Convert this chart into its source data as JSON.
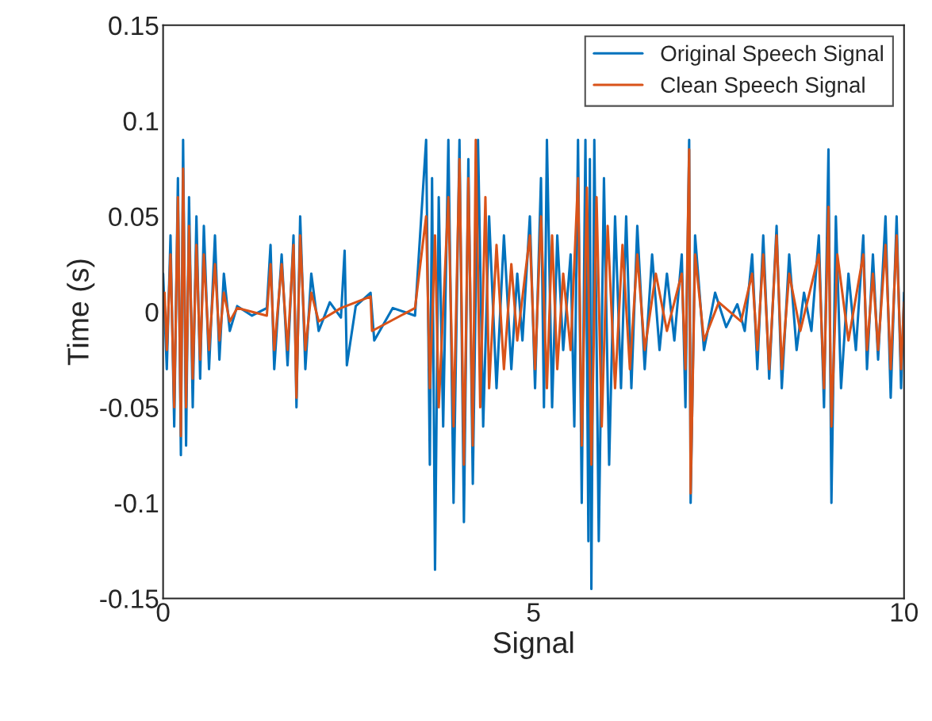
{
  "chart_data": {
    "type": "line",
    "xlabel": "Signal",
    "ylabel": "Time (s)",
    "xlim": [
      0,
      10
    ],
    "ylim": [
      -0.15,
      0.15
    ],
    "xticks": [
      0,
      5,
      10
    ],
    "yticks": [
      -0.15,
      -0.1,
      -0.05,
      0,
      0.05,
      0.1,
      0.15
    ],
    "grid": false,
    "legend": "top right",
    "line_style": "solid",
    "marker": "none",
    "series": [
      {
        "name": "Original Speech Signal",
        "color": "#0072bd",
        "x": [
          0.0,
          0.05,
          0.1,
          0.15,
          0.2,
          0.24,
          0.27,
          0.31,
          0.35,
          0.4,
          0.45,
          0.5,
          0.55,
          0.62,
          0.7,
          0.76,
          0.82,
          0.9,
          1.0,
          1.2,
          1.4,
          1.45,
          1.5,
          1.6,
          1.68,
          1.76,
          1.8,
          1.85,
          1.92,
          2.0,
          2.1,
          2.25,
          2.4,
          2.45,
          2.48,
          2.6,
          2.8,
          2.85,
          3.1,
          3.4,
          3.55,
          3.6,
          3.63,
          3.67,
          3.72,
          3.78,
          3.85,
          3.92,
          4.0,
          4.06,
          4.12,
          4.18,
          4.25,
          4.32,
          4.4,
          4.5,
          4.6,
          4.7,
          4.78,
          4.85,
          4.95,
          5.02,
          5.1,
          5.14,
          5.18,
          5.25,
          5.32,
          5.4,
          5.5,
          5.55,
          5.6,
          5.65,
          5.7,
          5.74,
          5.76,
          5.78,
          5.82,
          5.88,
          5.95,
          6.02,
          6.1,
          6.18,
          6.25,
          6.32,
          6.4,
          6.5,
          6.6,
          6.7,
          6.8,
          6.9,
          7.0,
          7.05,
          7.1,
          7.12,
          7.18,
          7.3,
          7.45,
          7.6,
          7.75,
          7.85,
          7.95,
          8.02,
          8.1,
          8.18,
          8.28,
          8.35,
          8.45,
          8.55,
          8.65,
          8.75,
          8.85,
          8.92,
          8.98,
          9.02,
          9.08,
          9.15,
          9.25,
          9.35,
          9.45,
          9.5,
          9.58,
          9.65,
          9.75,
          9.82,
          9.9,
          9.96,
          10.0
        ],
        "values": [
          0.02,
          -0.03,
          0.04,
          -0.06,
          0.07,
          -0.075,
          0.09,
          -0.07,
          0.06,
          -0.05,
          0.05,
          -0.035,
          0.045,
          -0.03,
          0.04,
          -0.025,
          0.02,
          -0.01,
          0.003,
          -0.002,
          0.002,
          0.035,
          -0.03,
          0.03,
          -0.028,
          0.04,
          -0.05,
          0.05,
          -0.03,
          0.02,
          -0.01,
          0.005,
          -0.003,
          0.032,
          -0.028,
          0.003,
          0.01,
          -0.015,
          0.002,
          -0.002,
          0.09,
          -0.08,
          0.07,
          -0.135,
          0.06,
          -0.06,
          0.09,
          -0.1,
          0.09,
          -0.11,
          0.08,
          -0.09,
          0.09,
          -0.06,
          0.05,
          -0.04,
          0.04,
          -0.03,
          0.02,
          -0.015,
          0.05,
          -0.04,
          0.07,
          -0.05,
          0.09,
          -0.05,
          0.04,
          -0.02,
          0.03,
          -0.06,
          0.09,
          -0.1,
          0.09,
          -0.12,
          0.08,
          -0.145,
          0.09,
          -0.12,
          0.07,
          -0.08,
          0.05,
          -0.04,
          0.05,
          -0.04,
          0.045,
          -0.03,
          0.03,
          -0.02,
          0.02,
          -0.015,
          0.03,
          -0.05,
          0.09,
          -0.1,
          0.04,
          -0.02,
          0.01,
          -0.008,
          0.004,
          -0.01,
          0.03,
          -0.03,
          0.04,
          -0.035,
          0.045,
          -0.04,
          0.03,
          -0.02,
          0.01,
          -0.01,
          0.04,
          -0.05,
          0.085,
          -0.1,
          0.05,
          -0.04,
          0.02,
          -0.02,
          0.04,
          -0.03,
          0.03,
          -0.025,
          0.05,
          -0.045,
          0.05,
          -0.04,
          0.01
        ]
      },
      {
        "name": "Clean Speech Signal",
        "color": "#d95319",
        "x": [
          0.02,
          0.05,
          0.1,
          0.15,
          0.2,
          0.24,
          0.27,
          0.31,
          0.35,
          0.4,
          0.45,
          0.5,
          0.55,
          0.62,
          0.7,
          0.76,
          0.82,
          0.9,
          1.0,
          1.4,
          1.45,
          1.5,
          1.6,
          1.68,
          1.76,
          1.8,
          1.85,
          1.92,
          2.0,
          2.1,
          2.4,
          2.8,
          2.82,
          3.4,
          3.55,
          3.6,
          3.67,
          3.72,
          3.85,
          3.92,
          4.0,
          4.06,
          4.12,
          4.18,
          4.22,
          4.28,
          4.35,
          4.4,
          4.5,
          4.6,
          4.7,
          4.78,
          4.95,
          5.02,
          5.1,
          5.18,
          5.25,
          5.32,
          5.4,
          5.5,
          5.6,
          5.65,
          5.72,
          5.78,
          5.85,
          5.92,
          6.0,
          6.1,
          6.2,
          6.3,
          6.4,
          6.5,
          6.65,
          6.8,
          7.0,
          7.05,
          7.1,
          7.12,
          7.18,
          7.3,
          7.5,
          7.8,
          7.95,
          8.02,
          8.1,
          8.18,
          8.28,
          8.35,
          8.45,
          8.6,
          8.85,
          8.92,
          8.98,
          9.02,
          9.1,
          9.25,
          9.45,
          9.5,
          9.58,
          9.65,
          9.75,
          9.82,
          9.9,
          9.96,
          10.0
        ],
        "values": [
          0.01,
          -0.02,
          0.03,
          -0.05,
          0.06,
          -0.065,
          0.075,
          -0.05,
          0.045,
          -0.035,
          0.035,
          -0.025,
          0.03,
          -0.02,
          0.025,
          -0.015,
          0.01,
          -0.005,
          0.002,
          -0.002,
          0.025,
          -0.02,
          0.025,
          -0.02,
          0.035,
          -0.045,
          0.04,
          -0.02,
          0.01,
          -0.005,
          0.002,
          0.008,
          -0.01,
          0.002,
          0.05,
          -0.04,
          0.04,
          -0.05,
          0.06,
          -0.06,
          0.08,
          -0.08,
          0.07,
          -0.07,
          0.09,
          -0.05,
          0.06,
          -0.04,
          0.035,
          -0.03,
          0.025,
          -0.015,
          0.04,
          -0.03,
          0.05,
          -0.04,
          0.04,
          -0.03,
          0.02,
          -0.02,
          0.07,
          -0.07,
          0.065,
          -0.08,
          0.06,
          -0.06,
          0.045,
          -0.04,
          0.035,
          -0.03,
          0.03,
          -0.02,
          0.02,
          -0.01,
          0.02,
          -0.03,
          0.085,
          -0.095,
          0.03,
          -0.015,
          0.005,
          -0.005,
          0.02,
          -0.02,
          0.03,
          -0.03,
          0.04,
          -0.03,
          0.02,
          -0.01,
          0.03,
          -0.04,
          0.055,
          -0.06,
          0.03,
          -0.015,
          0.03,
          -0.02,
          0.02,
          -0.02,
          0.035,
          -0.03,
          0.04,
          -0.03,
          0.005
        ]
      }
    ]
  }
}
